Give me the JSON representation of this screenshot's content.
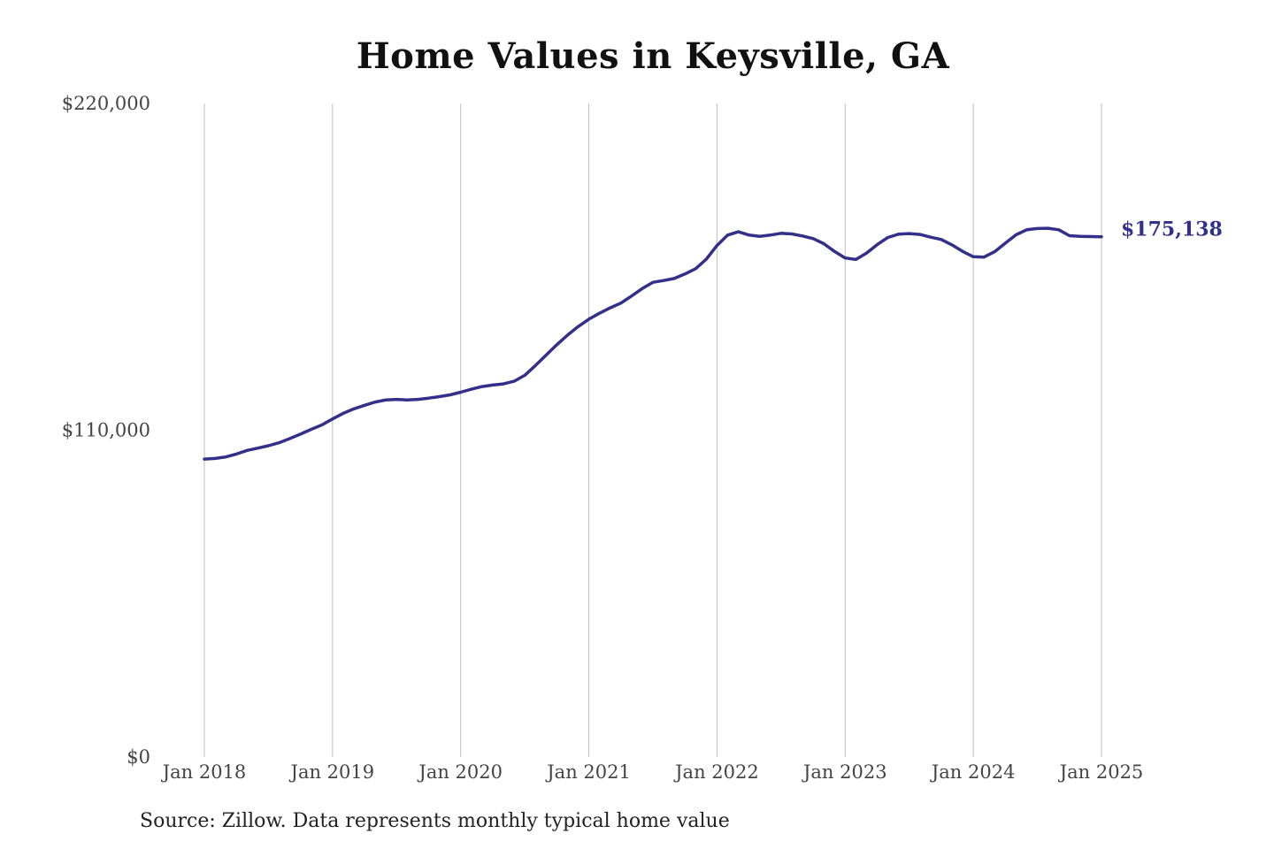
{
  "chart_data": {
    "type": "line",
    "title": "Home Values in Keysville, GA",
    "source": "Source: Zillow. Data represents monthly typical home value",
    "ylim": [
      0,
      220000
    ],
    "yticks": [
      {
        "value": 0,
        "label": "$0"
      },
      {
        "value": 110000,
        "label": "$110,000"
      },
      {
        "value": 220000,
        "label": "$220,000"
      }
    ],
    "xlim": [
      2018.0,
      2025.0
    ],
    "xticks": [
      {
        "value": 2018,
        "label": "Jan 2018"
      },
      {
        "value": 2019,
        "label": "Jan 2019"
      },
      {
        "value": 2020,
        "label": "Jan 2020"
      },
      {
        "value": 2021,
        "label": "Jan 2021"
      },
      {
        "value": 2022,
        "label": "Jan 2022"
      },
      {
        "value": 2023,
        "label": "Jan 2023"
      },
      {
        "value": 2024,
        "label": "Jan 2024"
      },
      {
        "value": 2025,
        "label": "Jan 2025"
      }
    ],
    "grid": "vertical",
    "line_color": "#33308a",
    "end_label": "$175,138",
    "series": [
      {
        "x": [
          "2018-01",
          "2018-02",
          "2018-03",
          "2018-04",
          "2018-05",
          "2018-06",
          "2018-07",
          "2018-08",
          "2018-09",
          "2018-10",
          "2018-11",
          "2018-12",
          "2019-01",
          "2019-02",
          "2019-03",
          "2019-04",
          "2019-05",
          "2019-06",
          "2019-07",
          "2019-08",
          "2019-09",
          "2019-10",
          "2019-11",
          "2019-12",
          "2020-01",
          "2020-02",
          "2020-03",
          "2020-04",
          "2020-05",
          "2020-06",
          "2020-07",
          "2020-08",
          "2020-09",
          "2020-10",
          "2020-11",
          "2020-12",
          "2021-01",
          "2021-02",
          "2021-03",
          "2021-04",
          "2021-05",
          "2021-06",
          "2021-07",
          "2021-08",
          "2021-09",
          "2021-10",
          "2021-11",
          "2021-12",
          "2022-01",
          "2022-02",
          "2022-03",
          "2022-04",
          "2022-05",
          "2022-06",
          "2022-07",
          "2022-08",
          "2022-09",
          "2022-10",
          "2022-11",
          "2022-12",
          "2023-01",
          "2023-02",
          "2023-03",
          "2023-04",
          "2023-05",
          "2023-06",
          "2023-07",
          "2023-08",
          "2023-09",
          "2023-10",
          "2023-11",
          "2023-12",
          "2024-01",
          "2024-02",
          "2024-03",
          "2024-04",
          "2024-05",
          "2024-06",
          "2024-07",
          "2024-08",
          "2024-09",
          "2024-10",
          "2024-11",
          "2024-12",
          "2025-01"
        ],
        "values": [
          100300,
          100500,
          101000,
          102000,
          103200,
          104000,
          104800,
          105800,
          107200,
          108700,
          110300,
          111800,
          113800,
          115700,
          117200,
          118400,
          119500,
          120200,
          120400,
          120200,
          120400,
          120800,
          121300,
          121900,
          122800,
          123800,
          124700,
          125200,
          125600,
          126500,
          128500,
          131800,
          135300,
          138800,
          142000,
          144900,
          147400,
          149400,
          151200,
          152800,
          155200,
          157700,
          159800,
          160400,
          161100,
          162600,
          164400,
          167600,
          172200,
          175700,
          176800,
          175700,
          175300,
          175700,
          176300,
          176100,
          175400,
          174500,
          172800,
          170200,
          168000,
          167500,
          169600,
          172500,
          174900,
          176000,
          176200,
          175900,
          175000,
          174200,
          172400,
          170200,
          168400,
          168300,
          170100,
          173000,
          175800,
          177500,
          177900,
          178000,
          177500,
          175500,
          175300,
          175200,
          175138
        ]
      }
    ]
  }
}
